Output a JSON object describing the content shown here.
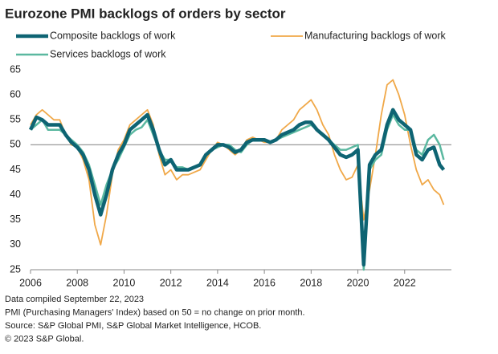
{
  "chart_data": {
    "type": "line",
    "title": "Eurozone PMI backlogs of orders by sector",
    "x": [
      2006,
      2006.25,
      2006.5,
      2006.75,
      2007,
      2007.25,
      2007.5,
      2007.75,
      2008,
      2008.25,
      2008.5,
      2008.75,
      2009,
      2009.25,
      2009.5,
      2009.75,
      2010,
      2010.25,
      2010.5,
      2010.75,
      2011,
      2011.25,
      2011.5,
      2011.75,
      2012,
      2012.25,
      2012.5,
      2012.75,
      2013,
      2013.25,
      2013.5,
      2013.75,
      2014,
      2014.25,
      2014.5,
      2014.75,
      2015,
      2015.25,
      2015.5,
      2015.75,
      2016,
      2016.25,
      2016.5,
      2016.75,
      2017,
      2017.25,
      2017.5,
      2017.75,
      2018,
      2018.25,
      2018.5,
      2018.75,
      2019,
      2019.25,
      2019.5,
      2019.75,
      2020,
      2020.25,
      2020.5,
      2020.75,
      2021,
      2021.25,
      2021.5,
      2021.75,
      2022,
      2022.25,
      2022.5,
      2022.75,
      2023,
      2023.25,
      2023.5,
      2023.67
    ],
    "series": [
      {
        "name": "Composite backlogs of work",
        "color": "#0e6473",
        "width": 4.5,
        "values": [
          53,
          55.5,
          55,
          54,
          54,
          54,
          52,
          50.5,
          49.5,
          48,
          45,
          40,
          36,
          40,
          45,
          48,
          50,
          53,
          54,
          55,
          56,
          53,
          49,
          46,
          47,
          45,
          45,
          45,
          45.5,
          46,
          48,
          49,
          50,
          50,
          49.5,
          48.5,
          49,
          50.5,
          51,
          51,
          51,
          50.5,
          51,
          52,
          52.5,
          53,
          54,
          54.5,
          54.5,
          53,
          52,
          51,
          49.5,
          48,
          47.5,
          48,
          49,
          26,
          46,
          48,
          49,
          54,
          57,
          55,
          54,
          53,
          48,
          47,
          49,
          49.5,
          46,
          45
        ]
      },
      {
        "name": "Manufacturing backlogs of work",
        "color": "#f0a848",
        "width": 1.8,
        "values": [
          54,
          56,
          57,
          56,
          55,
          55,
          52,
          50,
          49.5,
          47,
          43,
          34,
          30,
          36,
          44,
          49,
          51,
          54,
          55,
          56,
          57,
          54,
          48,
          44,
          45,
          43,
          44,
          44,
          44.5,
          45,
          47,
          49,
          50.5,
          50,
          49,
          48,
          49,
          51,
          51.5,
          51,
          50.5,
          50.5,
          51,
          53,
          54,
          55,
          57,
          58,
          59,
          57,
          54,
          52,
          48,
          45,
          43,
          43.5,
          46,
          35,
          41,
          48,
          56,
          62,
          63,
          60,
          56,
          50,
          45,
          42,
          43,
          41,
          40,
          38
        ]
      },
      {
        "name": "Services backlogs of work",
        "color": "#5bb8a0",
        "width": 2.5,
        "values": [
          53,
          54,
          55,
          53,
          53,
          53,
          52,
          51,
          50,
          48.5,
          46,
          42,
          38,
          42,
          45,
          47,
          49.5,
          52,
          53,
          53.5,
          55,
          52,
          49,
          47,
          47,
          45.5,
          45.5,
          45,
          45.5,
          46,
          48,
          49,
          49.5,
          50,
          50,
          49,
          48.5,
          50,
          51,
          51,
          51,
          50.5,
          51,
          51.5,
          52,
          52.5,
          53,
          53.5,
          54,
          53,
          52,
          51,
          50,
          49,
          49,
          49.5,
          50,
          25,
          45,
          47,
          48,
          53,
          56,
          54,
          53,
          53,
          49,
          48,
          51,
          52,
          50,
          47
        ]
      }
    ],
    "xlim": [
      2006,
      2024
    ],
    "xticks": [
      2006,
      2008,
      2010,
      2012,
      2014,
      2016,
      2018,
      2020,
      2022
    ],
    "ylim": [
      25,
      65
    ],
    "yticks": [
      25,
      30,
      35,
      40,
      45,
      50,
      55,
      60,
      65
    ],
    "reference_line": 50,
    "notes": [
      "Data compiled September 22, 2023",
      "PMI (Purchasing Managers' Index) based on 50 = no change on prior month.",
      "Source: S&P Global PMI, S&P Global Market Intelligence, HCOB.",
      "© 2023 S&P Global."
    ]
  }
}
